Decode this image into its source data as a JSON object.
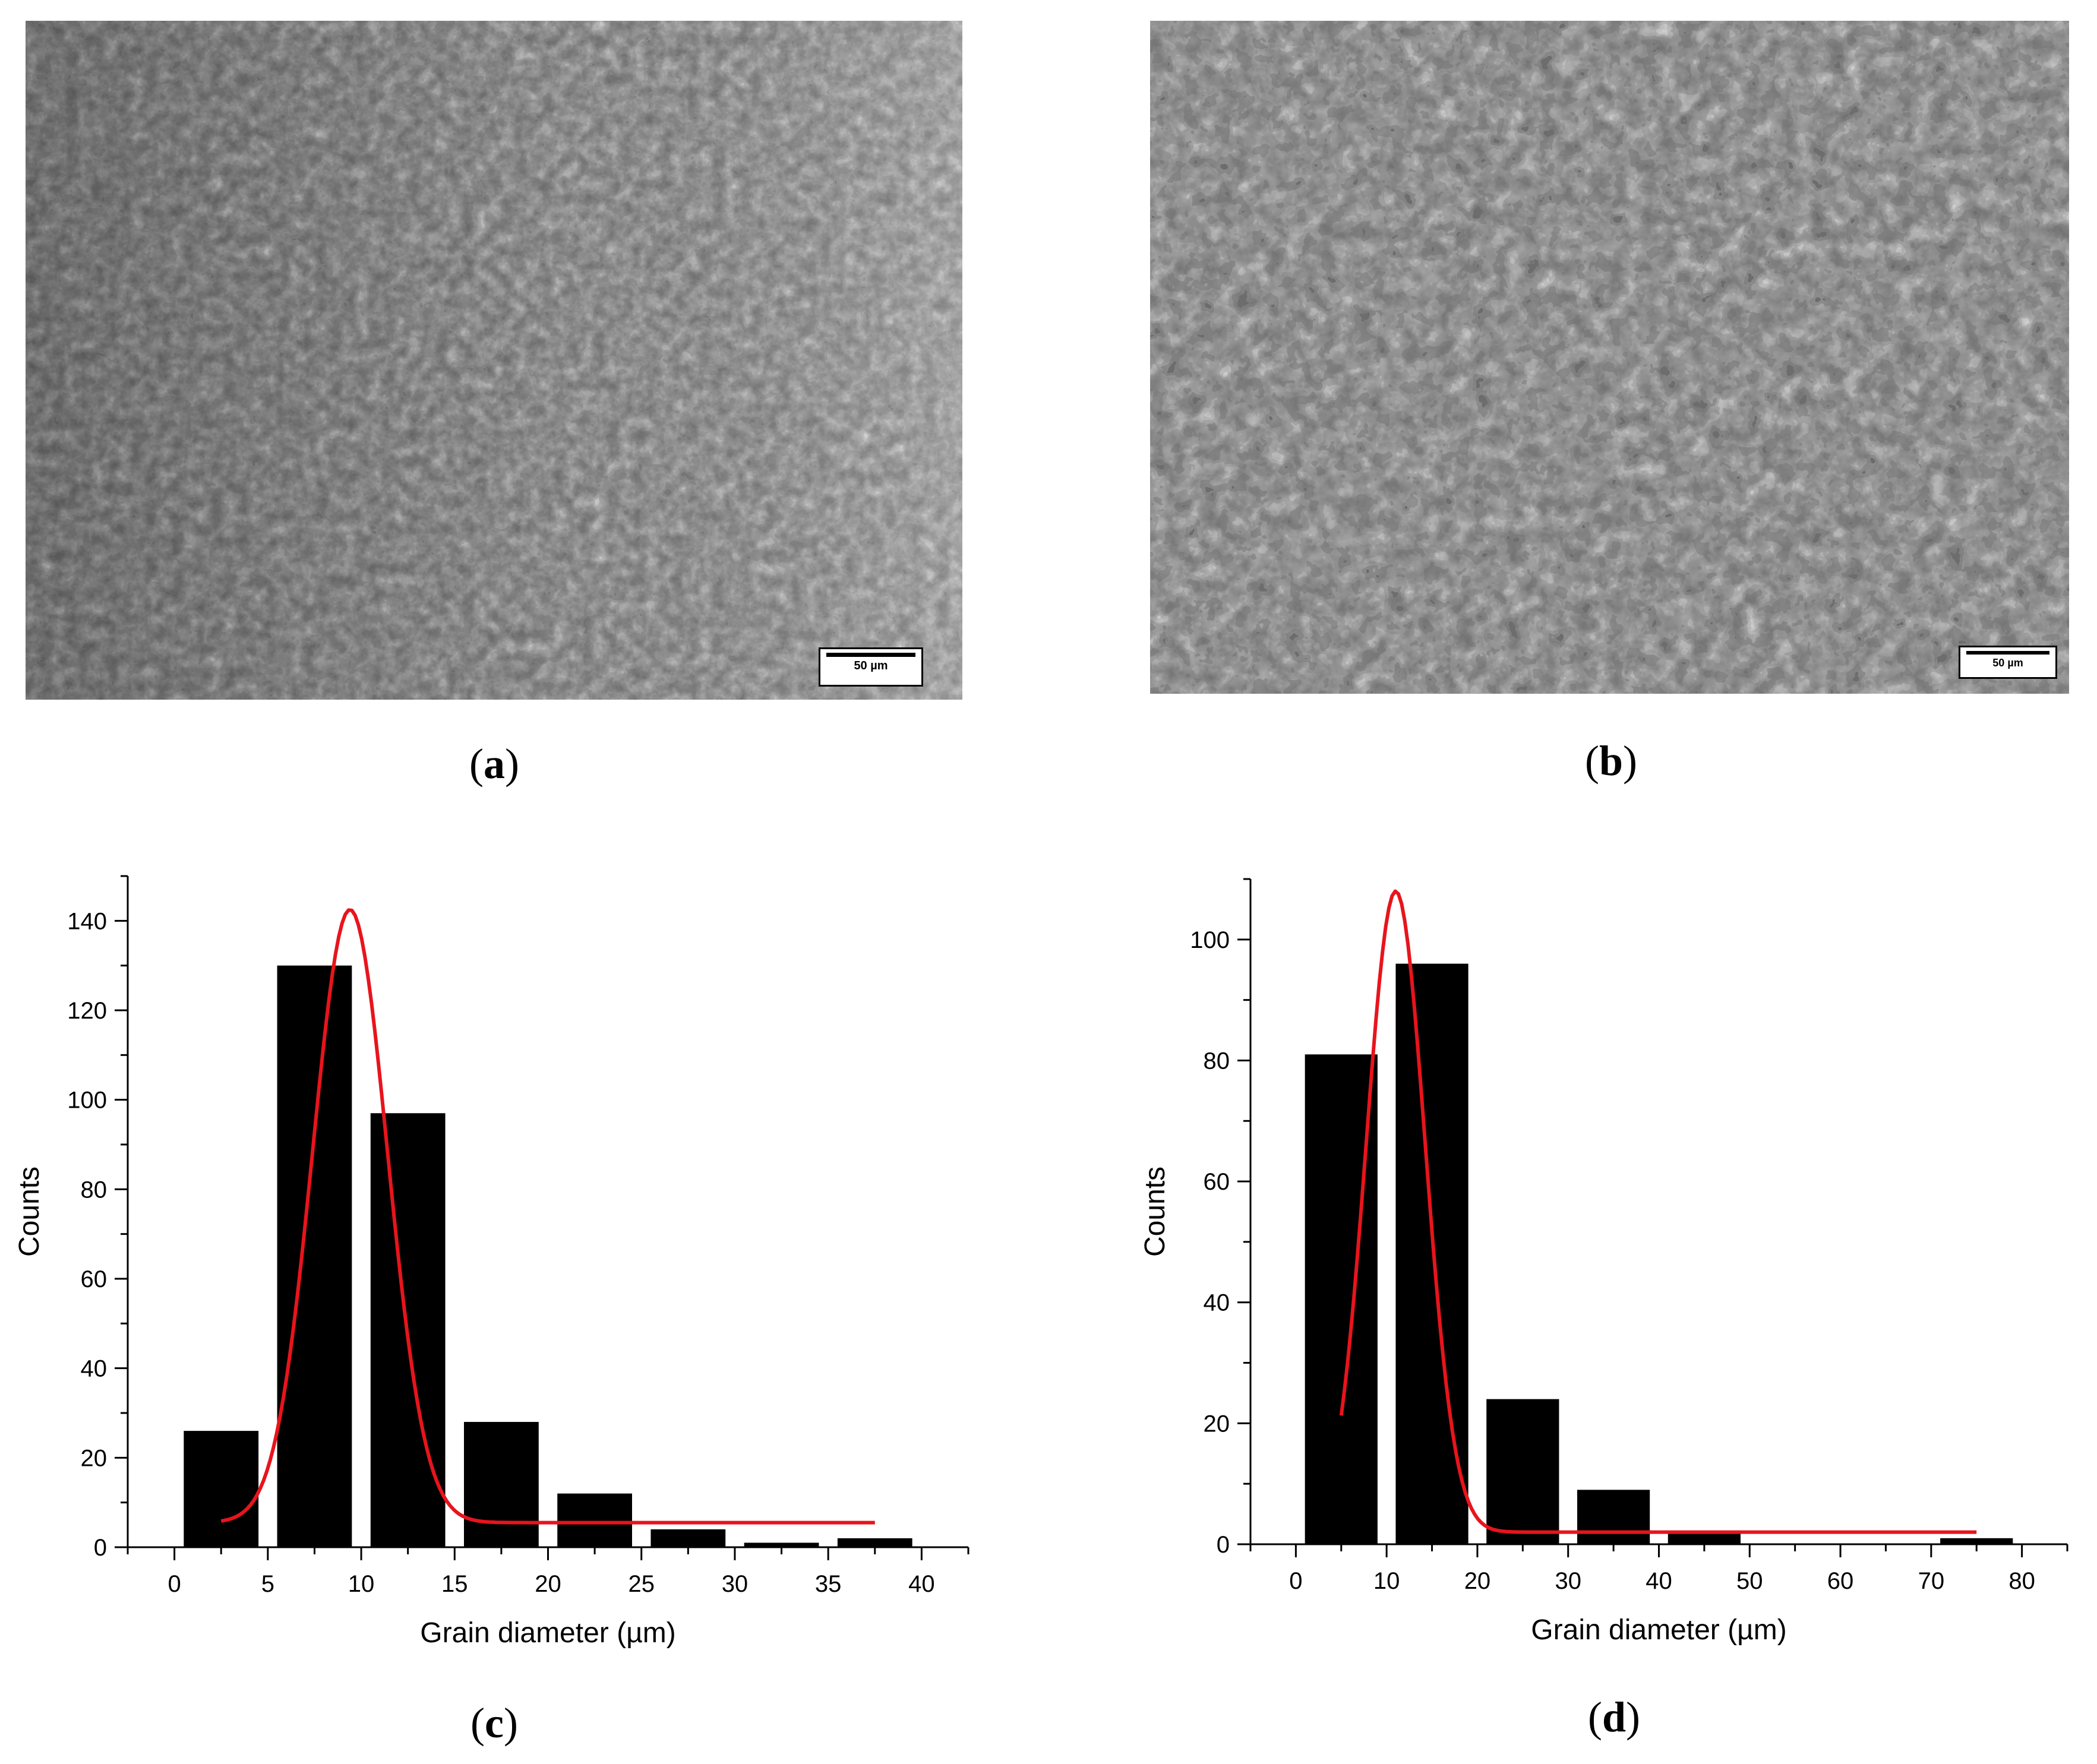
{
  "panels": {
    "a": {
      "caption_open": "(",
      "caption_letter": "a",
      "caption_close": ")",
      "scale_label": "50 µm"
    },
    "b": {
      "caption_open": "(",
      "caption_letter": "b",
      "caption_close": ")",
      "scale_label": "50 µm"
    },
    "c": {
      "caption_open": "(",
      "caption_letter": "c",
      "caption_close": ")"
    },
    "d": {
      "caption_open": "(",
      "caption_letter": "d",
      "caption_close": ")"
    }
  },
  "colors": {
    "bars": "#000000",
    "fit": "#e8141c",
    "micro_dark": "#1a1a1a",
    "micro_light": "#d9d9d9"
  },
  "chart_data": [
    {
      "panel": "c",
      "type": "bar",
      "xlabel": "Grain diameter (µm)",
      "ylabel": "Counts",
      "xlim": [
        -2.5,
        42.5
      ],
      "ylim": [
        0,
        150
      ],
      "xticks": [
        0,
        5,
        10,
        15,
        20,
        25,
        30,
        35,
        40
      ],
      "yticks": [
        0,
        20,
        40,
        60,
        80,
        100,
        120,
        140
      ],
      "bins": [
        [
          0.5,
          4.5
        ],
        [
          5.5,
          9.5
        ],
        [
          10.5,
          14.5
        ],
        [
          15.5,
          19.5
        ],
        [
          20.5,
          24.5
        ],
        [
          25.5,
          29.5
        ],
        [
          30.5,
          34.5
        ],
        [
          35.5,
          39.5
        ]
      ],
      "values": [
        26,
        130,
        97,
        28,
        12,
        4,
        1,
        2
      ],
      "fit": {
        "type": "gaussian",
        "y0": 5.5,
        "A": 137,
        "xc": 9.4,
        "w": 4.0,
        "x_range": [
          2.5,
          37.5
        ]
      }
    },
    {
      "panel": "d",
      "type": "bar",
      "xlabel": "Grain diameter (µm)",
      "ylabel": "Counts",
      "xlim": [
        -5,
        85
      ],
      "ylim": [
        0,
        110
      ],
      "xticks": [
        0,
        10,
        20,
        30,
        40,
        50,
        60,
        70,
        80
      ],
      "yticks": [
        0,
        20,
        40,
        60,
        80,
        100
      ],
      "bins": [
        [
          1,
          9
        ],
        [
          11,
          19
        ],
        [
          21,
          29
        ],
        [
          31,
          39
        ],
        [
          41,
          49
        ],
        [
          71,
          79
        ]
      ],
      "values": [
        81,
        96,
        24,
        9,
        2,
        1
      ],
      "fit": {
        "type": "gaussian",
        "y0": 2,
        "A": 106,
        "xc": 11,
        "w": 6.5,
        "x_range": [
          5,
          75
        ]
      }
    }
  ]
}
